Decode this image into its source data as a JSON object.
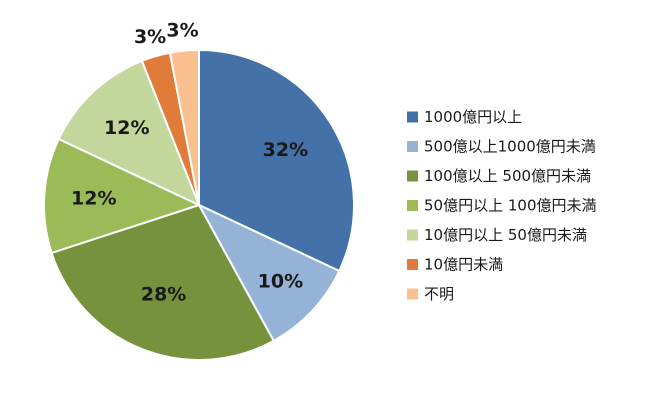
{
  "chart_data": {
    "type": "pie",
    "categories": [
      "1000億円以上",
      "500億以上1000億円未満",
      "100億以上 500億円未満",
      "50億円以上 100億円未満",
      "10億円以上 50億円未満",
      "10億円未満",
      "不明"
    ],
    "values": [
      32,
      10,
      28,
      12,
      12,
      3,
      3
    ],
    "labels": [
      "32%",
      "10%",
      "28%",
      "12%",
      "12%",
      "3%",
      "3%"
    ],
    "colors": [
      "#4472a8",
      "#95b3d7",
      "#76923c",
      "#9bbb59",
      "#c3d69b",
      "#e07b39",
      "#fac090"
    ],
    "legend_position": "right",
    "start_angle": "top, clockwise"
  }
}
